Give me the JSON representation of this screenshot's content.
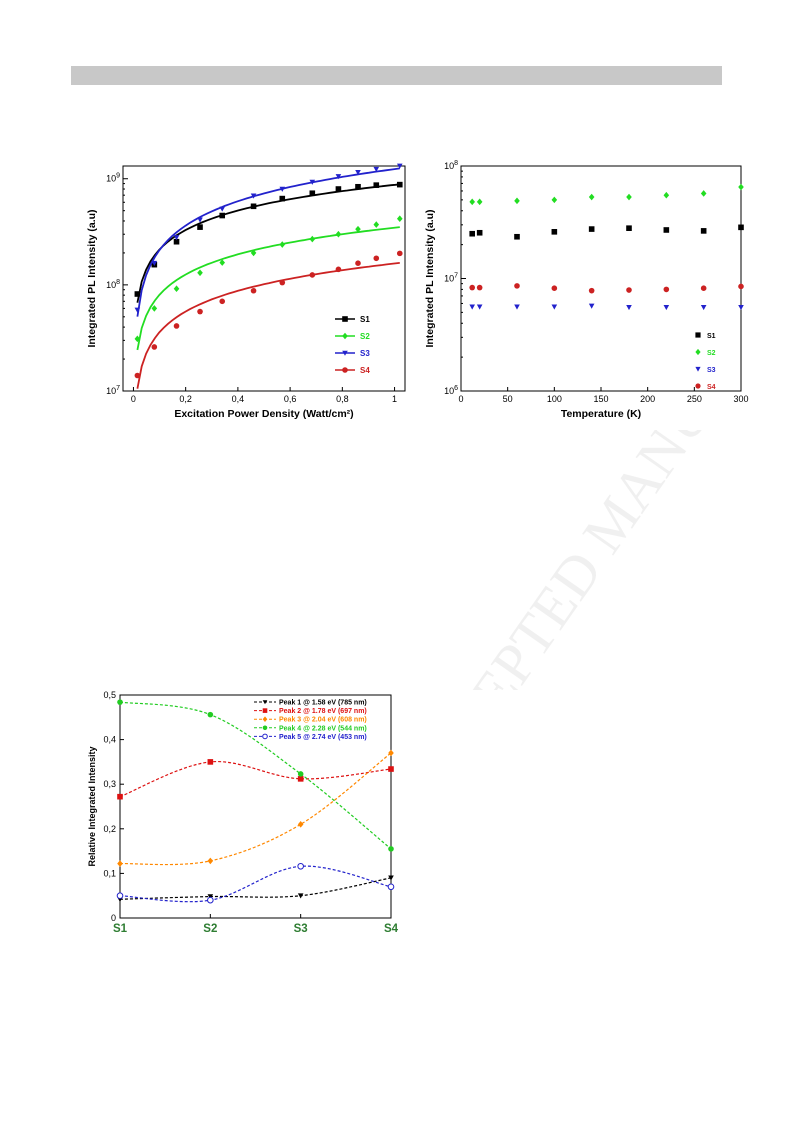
{
  "watermark": "ACCEPTED MANUSCRIPT",
  "colors": {
    "S1": "#000000",
    "S2": "#22dd22",
    "S3": "#2222cc",
    "S4": "#cc2222",
    "peak1": "#000000",
    "peak2": "#dd1111",
    "peak3": "#ff8800",
    "peak4": "#22cc22",
    "peak5": "#2222cc",
    "sample_label": "#2e7d32"
  },
  "chart_data": [
    {
      "type": "scatter",
      "xlabel": "Excitation Power Density (Watt/cm²)",
      "ylabel": "Integrated PL Intensity (a.u)",
      "xlim": [
        -0.04,
        1.04
      ],
      "ylim_log10": [
        7,
        9.12
      ],
      "log_y": true,
      "xticks": [
        0,
        0.2,
        0.4,
        0.6,
        0.8,
        1
      ],
      "xtick_labels": [
        "0",
        "0,2",
        "0,4",
        "0,6",
        "0,8",
        "1"
      ],
      "yticks": [
        10000000,
        100000000,
        1000000000
      ],
      "legend_position": "bottom-right",
      "fit_lines": true,
      "series": [
        {
          "name": "S1",
          "marker": "square",
          "x": [
            0.015,
            0.08,
            0.165,
            0.255,
            0.34,
            0.46,
            0.57,
            0.685,
            0.785,
            0.86,
            0.93,
            1.02
          ],
          "y": [
            82000000,
            155000000,
            255000000,
            350000000,
            450000000,
            550000000,
            650000000,
            730000000,
            800000000,
            840000000,
            870000000,
            880000000
          ]
        },
        {
          "name": "S2",
          "marker": "diamond",
          "x": [
            0.015,
            0.08,
            0.165,
            0.255,
            0.34,
            0.46,
            0.57,
            0.685,
            0.785,
            0.86,
            0.93,
            1.02
          ],
          "y": [
            31000000,
            60000000,
            92000000,
            130000000,
            162000000,
            200000000,
            240000000,
            270000000,
            300000000,
            335000000,
            370000000,
            420000000
          ]
        },
        {
          "name": "S3",
          "marker": "triangle-down",
          "x": [
            0.015,
            0.08,
            0.165,
            0.255,
            0.34,
            0.46,
            0.57,
            0.685,
            0.785,
            0.86,
            0.93,
            1.02
          ],
          "y": [
            58000000,
            160000000,
            280000000,
            410000000,
            520000000,
            690000000,
            800000000,
            930000000,
            1050000000,
            1150000000,
            1230000000,
            1320000000
          ]
        },
        {
          "name": "S4",
          "marker": "circle",
          "x": [
            0.015,
            0.08,
            0.165,
            0.255,
            0.34,
            0.46,
            0.57,
            0.685,
            0.785,
            0.86,
            0.93,
            1.02
          ],
          "y": [
            14000000,
            26000000,
            41000000,
            56000000,
            70000000,
            88000000,
            105000000,
            124000000,
            140000000,
            160000000,
            178000000,
            198000000
          ]
        }
      ]
    },
    {
      "type": "scatter",
      "xlabel": "Temperature (K)",
      "ylabel": "Integrated PL Intensity (a.u)",
      "xlim": [
        0,
        300
      ],
      "ylim_log10": [
        6,
        8
      ],
      "log_y": true,
      "xticks": [
        0,
        50,
        100,
        150,
        200,
        250,
        300
      ],
      "xtick_labels": [
        "0",
        "50",
        "100",
        "150",
        "200",
        "250",
        "300"
      ],
      "yticks": [
        1000000,
        10000000,
        100000000
      ],
      "legend_position": "bottom-right",
      "series": [
        {
          "name": "S1",
          "marker": "square",
          "x": [
            12,
            20,
            60,
            100,
            140,
            180,
            220,
            260,
            300
          ],
          "y": [
            25000000,
            25500000,
            23500000,
            26000000,
            27500000,
            28000000,
            27000000,
            26500000,
            28500000
          ]
        },
        {
          "name": "S2",
          "marker": "diamond",
          "x": [
            12,
            20,
            60,
            100,
            140,
            180,
            220,
            260,
            300
          ],
          "y": [
            48000000,
            48000000,
            49000000,
            50000000,
            53000000,
            53000000,
            55000000,
            57000000,
            65000000
          ]
        },
        {
          "name": "S3",
          "marker": "triangle-down",
          "x": [
            12,
            20,
            60,
            100,
            140,
            180,
            220,
            260,
            300
          ],
          "y": [
            5600000,
            5600000,
            5600000,
            5600000,
            5700000,
            5550000,
            5550000,
            5550000,
            5550000
          ]
        },
        {
          "name": "S4",
          "marker": "circle",
          "x": [
            12,
            20,
            60,
            100,
            140,
            180,
            220,
            260,
            300
          ],
          "y": [
            8300000,
            8300000,
            8600000,
            8200000,
            7800000,
            7900000,
            8000000,
            8200000,
            8500000
          ]
        }
      ]
    },
    {
      "type": "line",
      "xlabel": "",
      "ylabel": "Relative Integrated Intensity",
      "categories": [
        "S1",
        "S2",
        "S3",
        "S4"
      ],
      "ylim": [
        0,
        0.5
      ],
      "yticks": [
        0,
        0.1,
        0.2,
        0.3,
        0.4,
        0.5
      ],
      "ytick_labels": [
        "0",
        "0,1",
        "0,2",
        "0,3",
        "0,4",
        "0,5"
      ],
      "legend_position": "top-right",
      "series": [
        {
          "name": "Peak 1 @ 1.58 eV (785 nm)",
          "marker": "triangle-down",
          "values": [
            0.042,
            0.048,
            0.05,
            0.09
          ]
        },
        {
          "name": "Peak 2 @ 1.78 eV (697 nm)",
          "marker": "square",
          "values": [
            0.272,
            0.35,
            0.312,
            0.334
          ]
        },
        {
          "name": "Peak 3 @ 2.04 eV (608 nm)",
          "marker": "diamond",
          "values": [
            0.122,
            0.128,
            0.21,
            0.37
          ]
        },
        {
          "name": "Peak 4 @ 2.28 eV (544 nm)",
          "marker": "circle",
          "values": [
            0.484,
            0.456,
            0.323,
            0.155
          ]
        },
        {
          "name": "Peak 5 @ 2.74 eV (453 nm)",
          "marker": "circle-open",
          "values": [
            0.05,
            0.04,
            0.116,
            0.07
          ]
        }
      ]
    }
  ]
}
